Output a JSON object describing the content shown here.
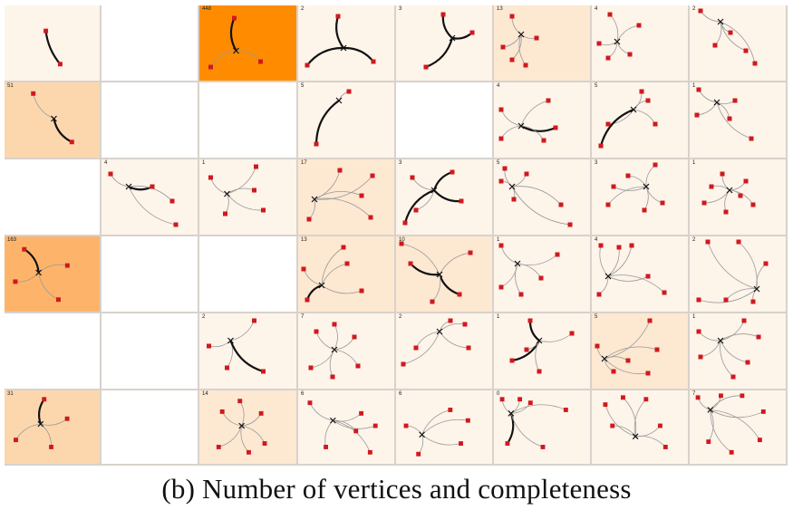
{
  "caption": "(b)  Number of vertices and completeness",
  "colors": {
    "empty": "#ffffff",
    "level1": "#fdf4ea",
    "level2": "#fde8d2",
    "level3": "#fcd7ad",
    "level4": "#fdb46a",
    "level5": "#ff8c00",
    "node": "#d0191e",
    "edge": "#111111",
    "thin_edge": "#999999",
    "grid_line": "#d8d2cc"
  },
  "grid": {
    "rows": [
      [
        {
          "label": "",
          "shade": "level1",
          "glyph": 0
        },
        {
          "label": "",
          "shade": "empty",
          "glyph": -1
        },
        {
          "label": "448",
          "shade": "level5",
          "glyph": 1
        },
        {
          "label": "2",
          "shade": "level1",
          "glyph": 2
        },
        {
          "label": "3",
          "shade": "level1",
          "glyph": 3
        },
        {
          "label": "13",
          "shade": "level2",
          "glyph": 4
        },
        {
          "label": "4",
          "shade": "level1",
          "glyph": 5
        },
        {
          "label": "2",
          "shade": "level1",
          "glyph": 6
        }
      ],
      [
        {
          "label": "51",
          "shade": "level3",
          "glyph": 7
        },
        {
          "label": "",
          "shade": "empty",
          "glyph": -1
        },
        {
          "label": "",
          "shade": "empty",
          "glyph": -1
        },
        {
          "label": "5",
          "shade": "level1",
          "glyph": 8
        },
        {
          "label": "",
          "shade": "empty",
          "glyph": -1
        },
        {
          "label": "4",
          "shade": "level1",
          "glyph": 9
        },
        {
          "label": "5",
          "shade": "level1",
          "glyph": 10
        },
        {
          "label": "1",
          "shade": "level1",
          "glyph": 11
        }
      ],
      [
        {
          "label": "",
          "shade": "empty",
          "glyph": -1
        },
        {
          "label": "4",
          "shade": "level1",
          "glyph": 12
        },
        {
          "label": "1",
          "shade": "level1",
          "glyph": 13
        },
        {
          "label": "17",
          "shade": "level2",
          "glyph": 14
        },
        {
          "label": "3",
          "shade": "level1",
          "glyph": 15
        },
        {
          "label": "5",
          "shade": "level1",
          "glyph": 16
        },
        {
          "label": "3",
          "shade": "level1",
          "glyph": 17
        },
        {
          "label": "1",
          "shade": "level1",
          "glyph": 18
        }
      ],
      [
        {
          "label": "163",
          "shade": "level4",
          "glyph": 19
        },
        {
          "label": "",
          "shade": "empty",
          "glyph": -1
        },
        {
          "label": "",
          "shade": "empty",
          "glyph": -1
        },
        {
          "label": "13",
          "shade": "level2",
          "glyph": 20
        },
        {
          "label": "10",
          "shade": "level2",
          "glyph": 21
        },
        {
          "label": "1",
          "shade": "level1",
          "glyph": 22
        },
        {
          "label": "4",
          "shade": "level1",
          "glyph": 23
        },
        {
          "label": "2",
          "shade": "level1",
          "glyph": 24
        }
      ],
      [
        {
          "label": "",
          "shade": "empty",
          "glyph": -1
        },
        {
          "label": "",
          "shade": "empty",
          "glyph": -1
        },
        {
          "label": "2",
          "shade": "level1",
          "glyph": 25
        },
        {
          "label": "7",
          "shade": "level1",
          "glyph": 26
        },
        {
          "label": "2",
          "shade": "level1",
          "glyph": 27
        },
        {
          "label": "1",
          "shade": "level1",
          "glyph": 28
        },
        {
          "label": "5",
          "shade": "level2",
          "glyph": 29
        },
        {
          "label": "1",
          "shade": "level1",
          "glyph": 30
        }
      ],
      [
        {
          "label": "31",
          "shade": "level3",
          "glyph": 31
        },
        {
          "label": "",
          "shade": "empty",
          "glyph": -1
        },
        {
          "label": "14",
          "shade": "level2",
          "glyph": 32
        },
        {
          "label": "6",
          "shade": "level1",
          "glyph": 33
        },
        {
          "label": "6",
          "shade": "level1",
          "glyph": 34
        },
        {
          "label": "0",
          "shade": "level1",
          "glyph": 35
        },
        {
          "label": "",
          "shade": "level1",
          "glyph": 36
        },
        {
          "label": "7",
          "shade": "level1",
          "glyph": 37
        }
      ]
    ]
  }
}
